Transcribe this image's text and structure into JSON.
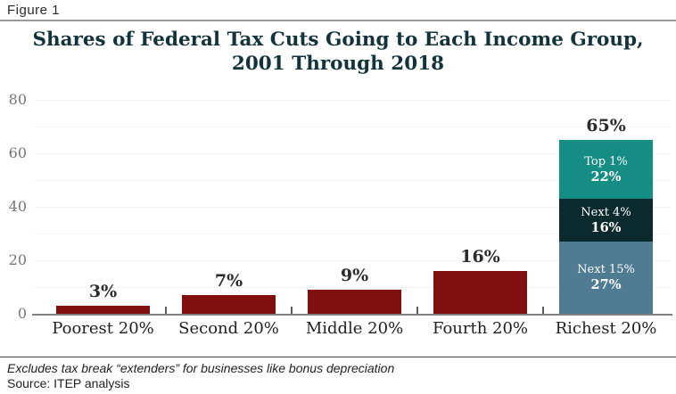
{
  "figure_label": "Figure 1",
  "title": {
    "line1": "Shares of Federal Tax Cuts Going to Each Income Group,",
    "line2": "2001 Through 2018"
  },
  "footer": {
    "note": "Excludes tax break “extenders” for businesses like bonus depreciation",
    "source": "Source: ITEP analysis"
  },
  "colors": {
    "bar_red": "#820f0f",
    "segment_teal": "#158c84",
    "segment_navy": "#0b2a2e",
    "segment_steelblue": "#4f7b93",
    "title_text": "#12333b",
    "axis_text": "#757575",
    "gridline": "#f2f2f2",
    "axis_line": "#808080"
  },
  "chart_data": {
    "type": "bar",
    "stacked": true,
    "title": "Shares of Federal Tax Cuts Going to Each Income Group, 2001 Through 2018",
    "xlabel": "",
    "ylabel": "",
    "ylim": [
      0,
      80
    ],
    "y_ticks": [
      0,
      20,
      40,
      60,
      80
    ],
    "gridline_step": 10,
    "grid": true,
    "legend": "none",
    "categories": [
      "Poorest 20%",
      "Second 20%",
      "Middle 20%",
      "Fourth 20%",
      "Richest 20%"
    ],
    "bars": [
      {
        "category": "Poorest 20%",
        "total": 3,
        "label": "3%",
        "color": "#820f0f"
      },
      {
        "category": "Second 20%",
        "total": 7,
        "label": "7%",
        "color": "#820f0f"
      },
      {
        "category": "Middle 20%",
        "total": 9,
        "label": "9%",
        "color": "#820f0f"
      },
      {
        "category": "Fourth 20%",
        "total": 16,
        "label": "16%",
        "color": "#820f0f"
      },
      {
        "category": "Richest 20%",
        "total": 65,
        "label": "65%",
        "segments": [
          {
            "name": "Next 15%",
            "value": 27,
            "label": "27%",
            "color": "#4f7b93"
          },
          {
            "name": "Next 4%",
            "value": 16,
            "label": "16%",
            "color": "#0b2a2e"
          },
          {
            "name": "Top 1%",
            "value": 22,
            "label": "22%",
            "color": "#158c84"
          }
        ]
      }
    ]
  }
}
